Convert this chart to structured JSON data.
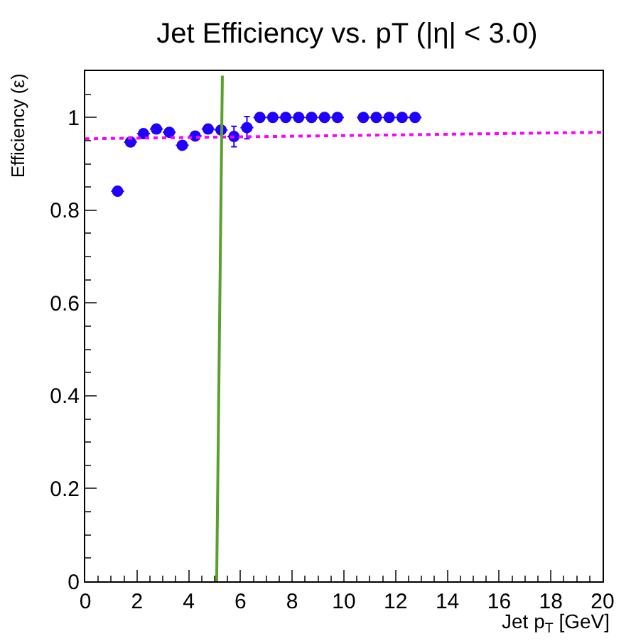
{
  "chart_data": {
    "type": "scatter",
    "title": "Jet Efficiency vs. pT (|η| < 3.0)",
    "xlabel": "Jet p$_{T}$ [GeV]",
    "ylabel": "Efficiency (ε)",
    "xlim": [
      0,
      20
    ],
    "ylim": [
      0,
      1.1
    ],
    "xticks": [
      0,
      2,
      4,
      6,
      8,
      10,
      12,
      14,
      16,
      18,
      20
    ],
    "yticks": [
      0,
      0.2,
      0.4,
      0.6,
      0.8,
      1
    ],
    "series": [
      {
        "color": "#1f00ff",
        "marker": "circle",
        "x": [
          1.25,
          1.75,
          2.25,
          2.75,
          3.25,
          3.75,
          4.25,
          4.75,
          5.25,
          5.75,
          6.25,
          6.75,
          7.25,
          7.75,
          8.25,
          8.75,
          9.25,
          9.75,
          10.75,
          11.25,
          11.75,
          12.25,
          12.75
        ],
        "values": [
          0.841,
          0.947,
          0.965,
          0.975,
          0.968,
          0.94,
          0.96,
          0.975,
          0.973,
          0.959,
          0.978,
          1,
          1,
          1,
          1,
          1,
          1,
          1,
          1,
          1,
          1,
          1,
          1
        ],
        "errors": [
          null,
          null,
          null,
          null,
          null,
          null,
          null,
          null,
          null,
          0.022,
          0.024,
          null,
          null,
          null,
          null,
          null,
          null,
          null,
          null,
          null,
          null,
          null,
          null
        ],
        "xerrors": [
          0.25,
          0.25,
          0.25,
          0.25,
          0.25,
          0.25,
          0.25,
          0.25,
          0.25,
          0.25,
          0.25,
          0.25,
          0.25,
          0.25,
          0.25,
          0.25,
          0.25,
          0.25,
          0.25,
          0.25,
          0.25,
          0.25,
          0.25
        ]
      },
      {
        "type": "line",
        "color": "#ff00ff",
        "line_style": "dotted",
        "x": [
          0,
          20
        ],
        "values": [
          0.954,
          0.968
        ]
      },
      {
        "type": "line",
        "color": "#5aa02c",
        "line_style": "solid",
        "x": [
          5.08,
          5.3
        ],
        "values": [
          0,
          1.09
        ]
      }
    ]
  }
}
